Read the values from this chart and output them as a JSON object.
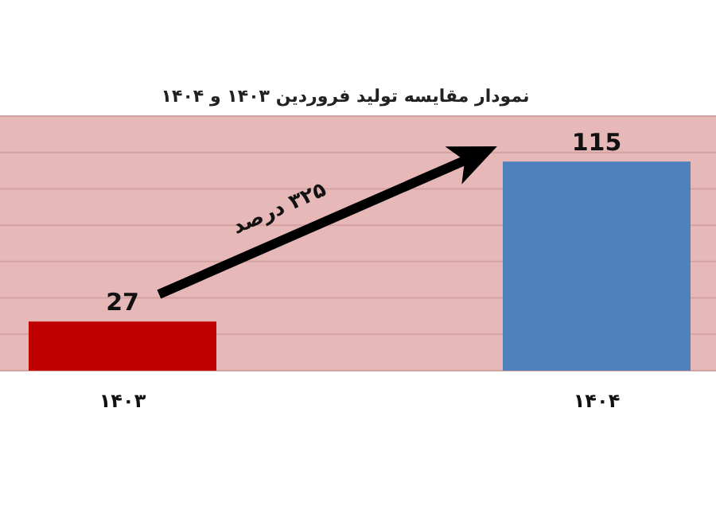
{
  "chart_data": {
    "type": "bar",
    "title": "نمودار  مقایسه تولید فروردین ۱۴۰۳ و ۱۴۰۴",
    "categories": [
      "۱۴۰۳",
      "۱۴۰۴"
    ],
    "values": [
      27,
      115
    ],
    "colors": [
      "#c00000",
      "#4f81bd"
    ],
    "ylim": [
      0,
      140
    ],
    "yticks": [
      {
        "value": 0,
        "label": null
      },
      {
        "value": 20,
        "label": null
      },
      {
        "value": 40,
        "label": null
      },
      {
        "value": 60,
        "label": null
      },
      {
        "value": 80,
        "label": null
      },
      {
        "value": 100,
        "label": null
      },
      {
        "value": 120,
        "label": null
      },
      {
        "value": 140,
        "label": null
      }
    ],
    "tick_labels": "x",
    "grid": "y",
    "data_labels": true,
    "annotations": [
      "۳۲۵ درصد"
    ]
  }
}
